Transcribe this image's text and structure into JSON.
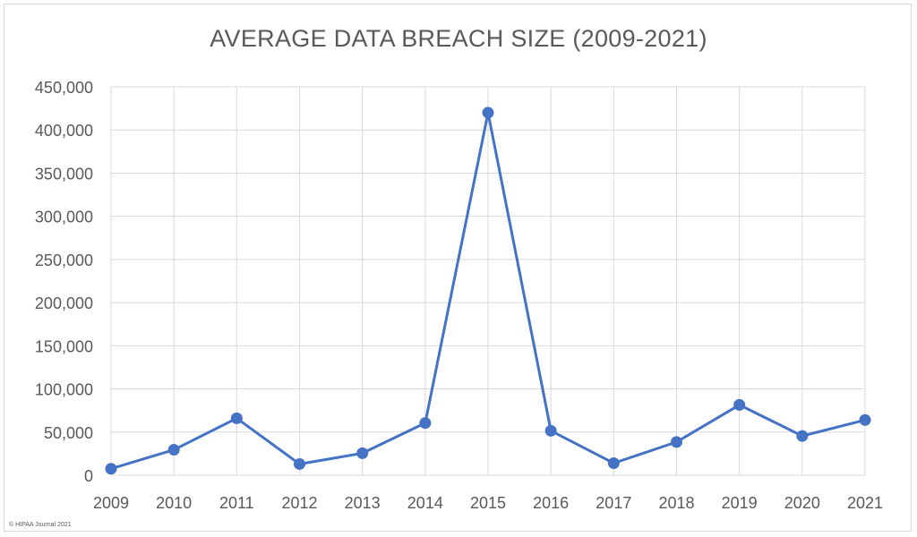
{
  "chart_data": {
    "type": "line",
    "title": "AVERAGE DATA BREACH SIZE (2009-2021)",
    "xlabel": "",
    "ylabel": "",
    "categories": [
      "2009",
      "2010",
      "2011",
      "2012",
      "2013",
      "2014",
      "2015",
      "2016",
      "2017",
      "2018",
      "2019",
      "2020",
      "2021"
    ],
    "series": [
      {
        "values": [
          7500,
          29500,
          66000,
          13000,
          25500,
          60500,
          420000,
          51500,
          14000,
          38500,
          81500,
          45500,
          64000
        ]
      }
    ],
    "ylim": [
      0,
      450000
    ],
    "yticks": [
      0,
      50000,
      100000,
      150000,
      200000,
      250000,
      300000,
      350000,
      400000,
      450000
    ],
    "ytick_labels": [
      "0",
      "50,000",
      "100,000",
      "150,000",
      "200,000",
      "250,000",
      "300,000",
      "350,000",
      "400,000",
      "450,000"
    ],
    "grid": true,
    "legend": "none",
    "color": "#4472c4",
    "credit": "© HIPAA Journal 2021"
  }
}
